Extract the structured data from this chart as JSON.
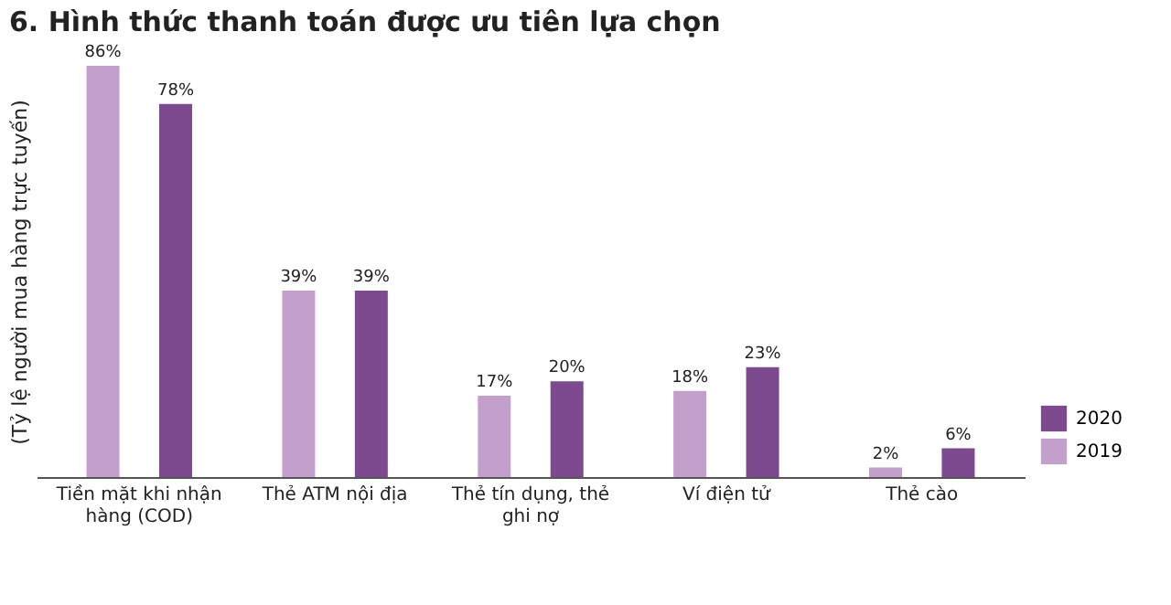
{
  "chart_data": {
    "type": "bar",
    "title": "6. Hình thức thanh toán được ưu tiên lựa chọn",
    "ylabel": "(Tỷ lệ người mua hàng trực tuyến)",
    "categories": [
      "Tiền mặt khi nhận hàng (COD)",
      "Thẻ ATM nội địa",
      "Thẻ tín dụng, thẻ ghi nợ",
      "Ví điện tử",
      "Thẻ cào"
    ],
    "series": [
      {
        "name": "2019",
        "color": "#c3a0cc",
        "values": [
          86,
          39,
          17,
          18,
          2
        ],
        "value_labels": [
          "86%",
          "39%",
          "17%",
          "18%",
          "2%"
        ]
      },
      {
        "name": "2020",
        "color": "#7d4a8f",
        "values": [
          78,
          39,
          20,
          23,
          6
        ],
        "value_labels": [
          "78%",
          "39%",
          "20%",
          "23%",
          "6%"
        ]
      }
    ],
    "grid": false,
    "legend": "bottom right"
  }
}
